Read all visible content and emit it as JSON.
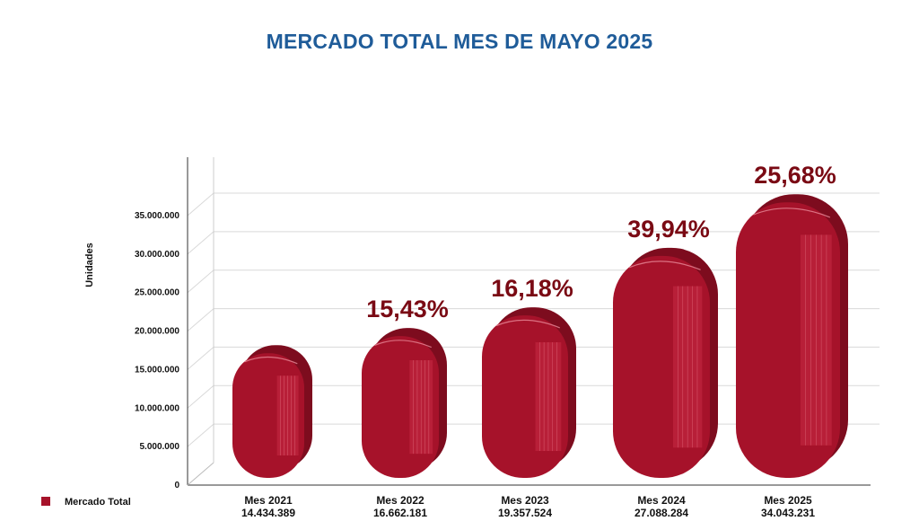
{
  "chart_data": {
    "type": "bar",
    "title": "MERCADO TOTAL MES DE MAYO 2025",
    "ylabel": "Unidades",
    "ylim": [
      0,
      35000000
    ],
    "yticks": [
      0,
      5000000,
      10000000,
      15000000,
      20000000,
      25000000,
      30000000,
      35000000
    ],
    "ytick_labels": [
      "0",
      "5.000.000",
      "10.000.000",
      "15.000.000",
      "20.000.000",
      "25.000.000",
      "30.000.000",
      "35.000.000"
    ],
    "categories": [
      "Mes 2021",
      "Mes 2022",
      "Mes 2023",
      "Mes 2024",
      "Mes 2025"
    ],
    "value_labels": [
      "14.434.389",
      "16.662.181",
      "19.357.524",
      "27.088.284",
      "34.043.231"
    ],
    "series": [
      {
        "name": "Mercado Total",
        "values": [
          14434389,
          16662181,
          19357524,
          27088284,
          34043231
        ]
      }
    ],
    "growth_labels": [
      "",
      "15,43%",
      "16,18%",
      "39,94%",
      "25,68%"
    ],
    "legend_position": "bottom-left",
    "grid": true,
    "colors": {
      "bar": "#a6122a",
      "bar_shade": "#7d0c1e",
      "bar_highlight": "#c72a43",
      "growth_label": "#7a0a14",
      "title": "#1f5c99"
    }
  }
}
